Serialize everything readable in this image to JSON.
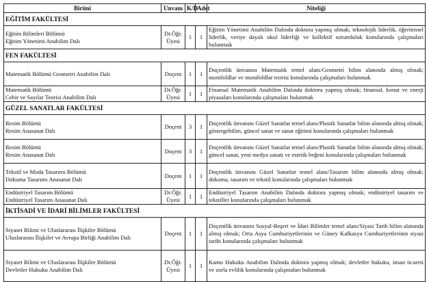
{
  "headers": {
    "birimi": "Birimi",
    "unvani": "Unvanı",
    "kd": "K/D",
    "adet": "Adet",
    "niteligi": "Niteliği"
  },
  "sections": [
    {
      "title": "EĞİTİM FAKÜLTESİ",
      "rows": [
        {
          "birim1": "Eğitim Bilimleri Bölümü",
          "birim2": "Eğitim Yönetimi Anabilim Dalı",
          "unvan": "Dr.Öğr. Üyesi",
          "kd": "1",
          "adet": "1",
          "nitelik": "Eğitim Yönetimi Anabilim Dalında doktora yapmış olmak; teknolojik liderlik, öğretimsel liderlik, veriye dayalı okul liderliği ve kollektif sorumluluk konularında çalışmaları bulunmak"
        }
      ]
    },
    {
      "title": "FEN FAKÜLTESİ",
      "rows": [
        {
          "birim1": "Matematik Bölümü Geometri Anabilim Dalı",
          "birim2": "",
          "unvan": "Doçent",
          "kd": "1",
          "adet": "1",
          "nitelik": "Doçentlik ünvanını Matematik temel alanı/Geometri bilim alanında almış olmak; monifoldlar ve monifoldlar teorisi konularında çalışmaları bulunmak"
        },
        {
          "birim1": "Matematik Bölümü",
          "birim2": "Cebir ve Sayılar Teorisi Anabilim Dalı",
          "unvan": "Dr.Öğr. Üyesi",
          "kd": "1",
          "adet": "1",
          "nitelik": "Finansal Matematik Anabilim Dalında doktora yapmış olmak; finansal, konut ve enerji piyasaları konularında çalışmaları bulunmak"
        }
      ]
    },
    {
      "title": "GÜZEL SANATLAR FAKÜLTESİ",
      "rows": [
        {
          "birim1": "Resim Bölümü",
          "birim2": "Resim Anasanat Dalı",
          "unvan": "Doçent",
          "kd": "3",
          "adet": "1",
          "nitelik": "Doçentlik ünvanını Güzel Sanatlar temel alanı/Plastik Sanatlar bilim alanında almış olmak; göstergebilim, güncel sanat ve sanat eğitimi konularında çalışmaları bulunmak"
        },
        {
          "birim1": "Resim Bölümü",
          "birim2": "Resim Anasanat Dalı",
          "unvan": "Doçent",
          "kd": "3",
          "adet": "1",
          "nitelik": "Doçentlik ünvanını Güzel Sanatlar temel alanı/Plastik Sanatlar bilim alanında almış olmak; güncel sanat, yeni medya sanatı ve estetik beğeni konularında çalışmaları bulunmak"
        },
        {
          "birim1": "Tekstil ve Moda Tasarımı Bölümü",
          "birim2": "Dokuma Tasarımı Anasanat Dalı",
          "unvan": "Doçent",
          "kd": "1",
          "adet": "1",
          "nitelik": "Doçentlik ünvanını Güzel Sanatlar temel alanı/Tasarım bilim alanında almış olmak; dokuma, tasarım ve tekstil konularında çalışmaları bulunmak"
        },
        {
          "birim1": "Endüstriyel Tasarım Bölümü",
          "birim2": "Endüstriyel Tasarım Anasanat Dalı",
          "unvan": "Dr.Öğr. Üyesi",
          "kd": "1",
          "adet": "1",
          "nitelik": "Endüstriyel Tasarım Anabilim Dalında doktora yapmış olmak; endüstriyel tasarım ve tekstiller konularında çalışmaları bulunmak"
        }
      ]
    },
    {
      "title": "İKTİSADİ VE İDARİ BİLİMLER FAKÜLTESİ",
      "rows": [
        {
          "birim1": "Siyaset Bilimi ve Uluslararası İlişkiler Bölümü",
          "birim2": "Uluslararası İlişkiler ve Avrupa Birliği Anabilim Dalı",
          "unvan": "Doçent",
          "kd": "1",
          "adet": "1",
          "nitelik": "Doçentlik ünvanını Sosyal-Beşeri ve İdari Bilimler temel alanı/Siyasi Tarih bilim alanında almış olmak; Orta Asya Cumhuriyetlerinin ve Güney Kafkasya Cumhuriyetlerinin siyasi tarihi konularında çalışmaları bulunmak"
        },
        {
          "birim1": "Siyaset Bilimi ve Uluslararası İlişkiler Bölümü",
          "birim2": "Devletler Hukuku Anabilim Dalı",
          "unvan": "Dr.Öğr. Üyesi",
          "kd": "1",
          "adet": "1",
          "nitelik": "Kamu Hukuku Anabilim Dalında doktora yapmış olmak; devletler hukuku, insan ticareti ve zorla evlilik konularında çalışmaları bulunmak"
        }
      ]
    }
  ]
}
